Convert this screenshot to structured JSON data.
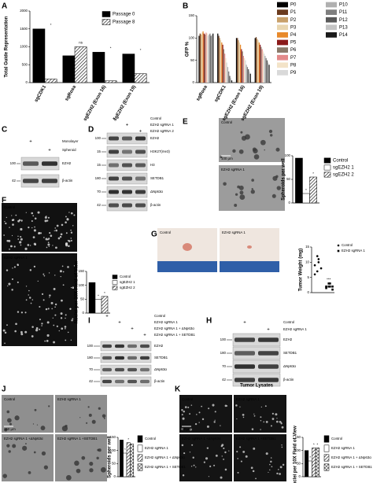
{
  "panel_letters": [
    "A",
    "B",
    "C",
    "D",
    "E",
    "F",
    "G",
    "H",
    "I",
    "J",
    "K"
  ],
  "chart_data": [
    {
      "type": "bar",
      "ylabel": "Total Guide Representation",
      "categories": [
        "sgCDK1",
        "sgRosa",
        "sgEZH2 (Exon 16)",
        "sgEZH2 (Exon 19)"
      ],
      "series": [
        {
          "name": "Passage 0",
          "color": "#000000",
          "values": [
            1500,
            750,
            850,
            800
          ]
        },
        {
          "name": "Passage 8",
          "color": "#ffffff",
          "pattern": "hatch",
          "values": [
            100,
            1000,
            50,
            250
          ]
        }
      ],
      "annotations": [
        "*",
        "ns",
        "*",
        "*"
      ],
      "ylim": [
        0,
        2000
      ],
      "yticks": [
        0,
        500,
        1000,
        1500,
        2000
      ]
    },
    {
      "type": "bar",
      "ylabel": "GFP %",
      "categories": [
        "sgRosa",
        "sgCDK1",
        "sgEZH2 (Exon 16)",
        "sgEZH2 (Exon 19)"
      ],
      "series": [
        {
          "name": "P0",
          "color": "#000000",
          "values": [
            105,
            110,
            100,
            100
          ]
        },
        {
          "name": "P1",
          "color": "#6b3b1e",
          "values": [
            110,
            105,
            100,
            102
          ]
        },
        {
          "name": "P2",
          "color": "#c8a06a",
          "values": [
            108,
            100,
            95,
            98
          ]
        },
        {
          "name": "P3",
          "color": "#e9d6b0",
          "values": [
            112,
            95,
            90,
            95
          ]
        },
        {
          "name": "P4",
          "color": "#e8892b",
          "values": [
            115,
            90,
            85,
            90
          ]
        },
        {
          "name": "P5",
          "color": "#8b1a1a",
          "values": [
            110,
            85,
            75,
            85
          ]
        },
        {
          "name": "P6",
          "color": "#8a7a6a",
          "values": [
            108,
            75,
            70,
            80
          ]
        },
        {
          "name": "P7",
          "color": "#e38a8a",
          "values": [
            112,
            65,
            60,
            75
          ]
        },
        {
          "name": "P8",
          "color": "#f3e3c8",
          "values": [
            110,
            55,
            55,
            70
          ]
        },
        {
          "name": "P9",
          "color": "#d9d9d9",
          "values": [
            105,
            45,
            50,
            65
          ]
        },
        {
          "name": "P10",
          "color": "#b0b0b0",
          "values": [
            108,
            35,
            40,
            60
          ]
        },
        {
          "name": "P11",
          "color": "#7f7f7f",
          "values": [
            110,
            25,
            35,
            55
          ]
        },
        {
          "name": "P12",
          "color": "#595959",
          "values": [
            105,
            15,
            30,
            50
          ]
        },
        {
          "name": "P13",
          "color": "#c4c4c4",
          "values": [
            108,
            10,
            25,
            45
          ]
        },
        {
          "name": "P14",
          "color": "#1a1a1a",
          "values": [
            110,
            5,
            20,
            40
          ]
        }
      ],
      "ylim": [
        0,
        150
      ],
      "yticks": [
        0,
        50,
        100,
        150
      ]
    },
    {
      "type": "bar",
      "ylabel": "Spheroids per well",
      "categories": [
        null
      ],
      "series": [
        {
          "name": "Control",
          "color": "#000000",
          "values": [
            95
          ]
        },
        {
          "name": "sgEZH2 1",
          "color": "#ffffff",
          "values": [
            20
          ],
          "annotation": "*"
        },
        {
          "name": "sgEZH2 2",
          "color": "#ffffff",
          "pattern": "hatch",
          "values": [
            55
          ],
          "annotation": "*"
        }
      ],
      "ylim": [
        0,
        100
      ],
      "yticks": [
        0,
        50,
        100
      ]
    },
    {
      "type": "bar",
      "ylabel": "Nuclei per 10X Field of View",
      "categories": [
        null
      ],
      "series": [
        {
          "name": "Control",
          "color": "#000000",
          "values": [
            110
          ]
        },
        {
          "name": "sgEZH2 1",
          "color": "#ffffff",
          "values": [
            50
          ],
          "annotation": "*"
        },
        {
          "name": "sgEZH2 2",
          "color": "#ffffff",
          "pattern": "hatch",
          "values": [
            60
          ],
          "annotation": "*"
        }
      ],
      "ylim": [
        0,
        150
      ],
      "yticks": [
        0,
        50,
        100,
        150
      ]
    },
    {
      "type": "dot",
      "ylabel": "Tumor Weight (mg)",
      "series": [
        {
          "name": "Control",
          "color": "#000000",
          "marker": "circle",
          "values": [
            12,
            10,
            9,
            8,
            7,
            11,
            6
          ]
        },
        {
          "name": "EZH2 sgRNA 1",
          "color": "#000000",
          "marker": "square",
          "values": [
            3,
            2,
            2,
            1,
            2,
            3,
            1.5,
            2
          ],
          "annotation": "***"
        }
      ],
      "ylim": [
        0,
        15
      ],
      "yticks": [
        0,
        5,
        10,
        15
      ]
    },
    {
      "type": "bar",
      "ylabel": "Spheroids per well",
      "categories": [
        null
      ],
      "series": [
        {
          "name": "Control",
          "color": "#000000",
          "values": [
            140
          ]
        },
        {
          "name": "EZH2 sgRNA 1",
          "color": "#ffffff",
          "values": [
            90
          ],
          "annotation": "*"
        },
        {
          "name": "EZH2 sgRNA 1 + ΔNp63α",
          "color": "#ffffff",
          "pattern": "hatch",
          "values": [
            130
          ],
          "annotation": "*"
        },
        {
          "name": "EZH2 sgRNA 1 + SETDB1",
          "color": "#ffffff",
          "pattern": "cross",
          "values": [
            125
          ]
        }
      ],
      "ylim": [
        0,
        150
      ],
      "yticks": [
        0,
        50,
        100,
        150
      ]
    },
    {
      "type": "bar",
      "ylabel": "Nuclei per 10X Field of View",
      "categories": [
        null
      ],
      "series": [
        {
          "name": "Control",
          "color": "#000000",
          "values": [
            100
          ]
        },
        {
          "name": "EZH2 sgRNA 1",
          "color": "#ffffff",
          "values": [
            60
          ],
          "annotation": "*"
        },
        {
          "name": "EZH2 sgRNA 1 + ΔNp63α",
          "color": "#ffffff",
          "pattern": "hatch",
          "values": [
            110
          ],
          "annotation": "*"
        },
        {
          "name": "EZH2 sgRNA 1 + SETDB1",
          "color": "#ffffff",
          "pattern": "cross",
          "values": [
            110
          ],
          "annotation": "*"
        }
      ],
      "ylim": [
        0,
        150
      ],
      "yticks": [
        0,
        50,
        100,
        150
      ]
    }
  ],
  "blots": [
    {
      "conditions": [
        {
          "label": "Monolayer",
          "sign": "+"
        },
        {
          "label": "Spheroid",
          "sign": "+"
        }
      ],
      "rows": [
        {
          "marker": 100,
          "protein": "EZH2"
        },
        {
          "marker": 42,
          "protein": "β-actin"
        }
      ]
    },
    {
      "conditions": [
        {
          "label": "Control",
          "sign": "+"
        },
        {
          "label": "EZH2 sgRNA 1",
          "sign": "+"
        },
        {
          "label": "EZH2 sgRNA 2",
          "sign": "+"
        }
      ],
      "rows": [
        {
          "marker": 100,
          "protein": "EZH2"
        },
        {
          "marker": 15,
          "protein": "H3K27(me3)"
        },
        {
          "marker": 15,
          "protein": "H3"
        },
        {
          "marker": 180,
          "protein": "SETDB1"
        },
        {
          "marker": 70,
          "protein": "ΔNp63α"
        },
        {
          "marker": 42,
          "protein": "β-actin"
        }
      ]
    },
    {
      "conditions": [
        {
          "label": "Control",
          "sign": "+"
        },
        {
          "label": "EZH2 sgRNA 1",
          "sign": "+"
        }
      ],
      "rows": [
        {
          "marker": 100,
          "protein": "EZH2"
        },
        {
          "marker": 180,
          "protein": "SETDB1"
        },
        {
          "marker": 70,
          "protein": "ΔNp63α"
        },
        {
          "marker": 42,
          "protein": "β-actin"
        }
      ],
      "caption": "Tumor Lysates"
    },
    {
      "conditions": [
        {
          "label": "Control",
          "sign": "+"
        },
        {
          "label": "EZH2 sgRNA 1",
          "sign": "+"
        },
        {
          "label": "EZH2 sgRNA 1 + ΔNp63α",
          "sign": "+"
        },
        {
          "label": "EZH2 sgRNA 1 + SETDB1",
          "sign": "+"
        }
      ],
      "rows": [
        {
          "marker": 100,
          "protein": "EZH2"
        },
        {
          "marker": 180,
          "protein": "SETDB1"
        },
        {
          "marker": 70,
          "protein": "ΔNp63α"
        },
        {
          "marker": 42,
          "protein": "β-actin"
        }
      ]
    }
  ],
  "images": [
    {
      "labels": [
        "Control",
        "EZH2 sgRNA 1"
      ],
      "scale_bar": "100 μm"
    },
    {
      "labels": [
        "Control",
        "EZH2 sgRNA 1"
      ]
    },
    {
      "labels": [
        "Control",
        "EZH2 sgRNA 1"
      ]
    },
    {
      "labels": [
        "Control",
        "EZH2 sgRNA 1",
        "EZH2 sgRNA 1 +ΔNp63α",
        "EZH2 sgRNA 1 +SETDB1"
      ],
      "scale_bar": "150 μm"
    },
    {
      "labels": [
        "Control",
        "EZH2 sgRNA 1",
        "EZH2 sgRNA 1 +ΔNp63α",
        "EZH2 sgRNA 1 +SETDB1"
      ],
      "scale_bar": "50 μm"
    }
  ]
}
